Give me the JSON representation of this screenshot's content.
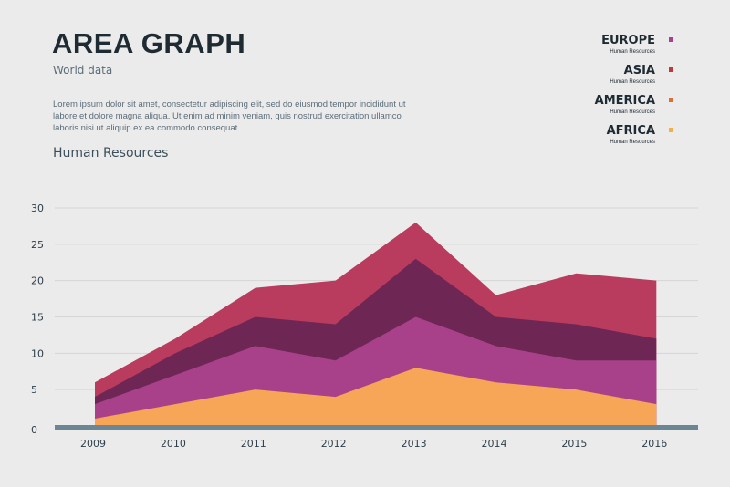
{
  "header": {
    "title": "AREA GRAPH",
    "subtitle": "World data",
    "body": "Lorem ipsum dolor sit amet, consectetur adipiscing elit, sed do eiusmod tempor incididunt ut labore et dolore magna aliqua. Ut enim ad minim veniam, quis nostrud exercitation ullamco laboris nisi ut aliquip ex ea commodo consequat.",
    "section": "Human Resources"
  },
  "legend": [
    {
      "name": "EUROPE",
      "sub": "Human Resources",
      "color": "#a8418a"
    },
    {
      "name": "ASIA",
      "sub": "Human Resources",
      "color": "#c6343f"
    },
    {
      "name": "AMERICA",
      "sub": "Human Resources",
      "color": "#d8722e"
    },
    {
      "name": "AFRICA",
      "sub": "Human Resources",
      "color": "#f5b043"
    }
  ],
  "chart_data": {
    "type": "area",
    "stacked": true,
    "title": "Human Resources",
    "categories": [
      "2009",
      "2010",
      "2011",
      "2012",
      "2013",
      "2014",
      "2015",
      "2016"
    ],
    "yticks": [
      "0",
      "5",
      "10",
      "15",
      "20",
      "25",
      "30"
    ],
    "ylim": [
      0,
      30
    ],
    "grid": true,
    "series": [
      {
        "color": "#f7a557",
        "values": [
          1,
          3,
          5,
          4,
          8,
          6,
          5,
          3
        ]
      },
      {
        "color": "#a8418a",
        "values": [
          3,
          7,
          11,
          9,
          15,
          11,
          9,
          9
        ]
      },
      {
        "color": "#6e2755",
        "values": [
          4,
          10,
          15,
          14,
          23,
          15,
          14,
          12
        ]
      },
      {
        "color": "#b93c5e",
        "values": [
          6,
          12,
          19,
          20,
          28,
          18,
          21,
          20
        ]
      }
    ],
    "baseline_color": "#6d8693"
  }
}
